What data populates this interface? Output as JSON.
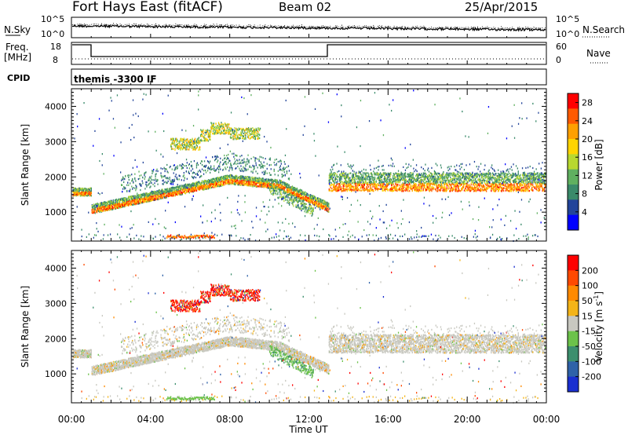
{
  "header": {
    "station": "Fort Hays East (fitACF)",
    "beam": "Beam 02",
    "date": "25/Apr/2015"
  },
  "noise_panel": {
    "left_label": "N.Sky",
    "right_label": "N.Search",
    "left_ticks": [
      "10^5",
      "10^0"
    ],
    "right_ticks": [
      "10^5",
      "10^0"
    ]
  },
  "freq_panel": {
    "left_label_1": "Freq.",
    "left_label_2": "[MHz]",
    "right_label": "Nave",
    "left_ticks": [
      "18",
      "8"
    ],
    "right_ticks": [
      "60",
      "0"
    ]
  },
  "cpid": {
    "label": "CPID",
    "value": "themis -3300 IF"
  },
  "chart_data": [
    {
      "type": "heatmap",
      "name": "power",
      "ylabel": "Slant Range [km]",
      "xlabel": "Time UT",
      "x_ticks": [
        "00:00",
        "04:00",
        "08:00",
        "12:00",
        "16:00",
        "20:00",
        "00:00"
      ],
      "x_range_hours": [
        0,
        24
      ],
      "y_ticks": [
        "1000",
        "2000",
        "3000",
        "4000"
      ],
      "y_range_km": [
        180,
        4500
      ],
      "colorbar_label": "Power [dB]",
      "colorbar_ticks": [
        "4",
        "8",
        "12",
        "16",
        "20",
        "24",
        "28"
      ],
      "colorbar_range": [
        0,
        30
      ],
      "colors": [
        "#0000ff",
        "#22449a",
        "#3a8a6a",
        "#60b060",
        "#b8d830",
        "#ffd400",
        "#ffa000",
        "#ff5a00",
        "#ff0000"
      ]
    },
    {
      "type": "heatmap",
      "name": "velocity",
      "ylabel": "Slant Range [km]",
      "xlabel": "Time UT",
      "x_ticks": [
        "00:00",
        "04:00",
        "08:00",
        "12:00",
        "16:00",
        "20:00",
        "00:00"
      ],
      "x_range_hours": [
        0,
        24
      ],
      "y_ticks": [
        "1000",
        "2000",
        "3000",
        "4000"
      ],
      "y_range_km": [
        180,
        4500
      ],
      "colorbar_label": "Velocity [m s",
      "colorbar_label_sup": "-1",
      "colorbar_label_end": "]",
      "colorbar_ticks": [
        "200",
        "100",
        "50",
        "15",
        "-15",
        "-50",
        "-100",
        "-200"
      ],
      "colors": [
        "#1a2fd0",
        "#2f62a8",
        "#3d8f6e",
        "#6cc24a",
        "#c8c8c0",
        "#f4b418",
        "#ff8a00",
        "#ff4a00",
        "#ff0000"
      ]
    }
  ]
}
